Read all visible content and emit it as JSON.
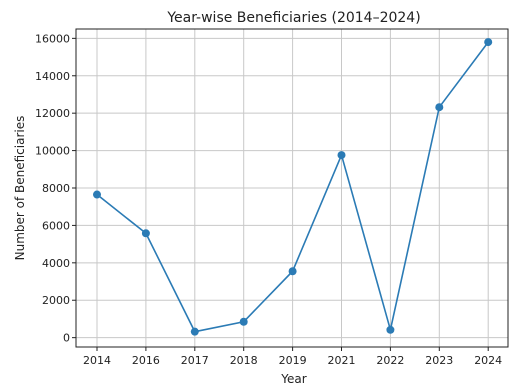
{
  "chart_data": {
    "type": "line",
    "title": "Year-wise Beneficiaries (2014–2024)",
    "xlabel": "Year",
    "ylabel": "Number of Beneficiaries",
    "categories": [
      "2014",
      "2016",
      "2017",
      "2018",
      "2019",
      "2021",
      "2022",
      "2023",
      "2024"
    ],
    "values": [
      7650,
      5580,
      320,
      850,
      3550,
      9760,
      420,
      12320,
      15800
    ],
    "ylim": [
      -500,
      16500
    ],
    "yticks": [
      "0",
      "2000",
      "4000",
      "6000",
      "8000",
      "10000",
      "12000",
      "14000",
      "16000"
    ],
    "grid": true,
    "line_color": "#2b7bb5",
    "marker": "circle"
  }
}
